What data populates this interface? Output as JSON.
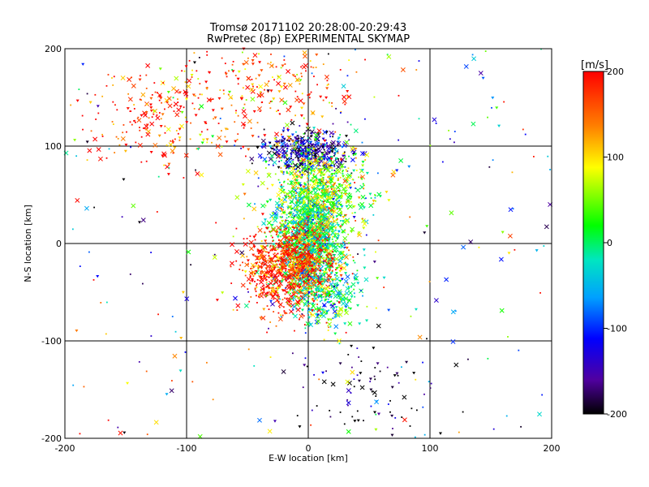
{
  "chart_data": {
    "type": "scatter",
    "title": "Tromsø 20171102 20:28:00-20:29:43",
    "subtitle": "RwPretec (8p) EXPERIMENTAL SKYMAP",
    "xlabel": "E-W location [km]",
    "ylabel": "N-S location [km]",
    "xlim": [
      -200,
      200
    ],
    "ylim": [
      -200,
      200
    ],
    "x_ticks": [
      -200,
      -100,
      0,
      100,
      200
    ],
    "y_ticks": [
      -200,
      -100,
      0,
      100,
      200
    ],
    "grid": true,
    "colorbar": {
      "label": "[m/s]",
      "range": [
        -200,
        200
      ],
      "ticks": [
        200,
        100,
        0,
        -100,
        -200
      ]
    },
    "point_density": [
      {
        "x": 0,
        "y": 5,
        "spread_x": 14,
        "spread_y": 30,
        "value": 0
      },
      {
        "x": 0,
        "y": 95,
        "spread_x": 18,
        "spread_y": 10,
        "value": -140
      },
      {
        "x": -15,
        "y": -25,
        "spread_x": 18,
        "spread_y": 22,
        "value": 185
      },
      {
        "x": 10,
        "y": 55,
        "spread_x": 20,
        "spread_y": 25,
        "value": 60
      },
      {
        "x": 15,
        "y": -55,
        "spread_x": 15,
        "spread_y": 15,
        "value": -10
      },
      {
        "x": -120,
        "y": 125,
        "spread_x": 30,
        "spread_y": 25,
        "value": 190
      },
      {
        "x": -40,
        "y": 160,
        "spread_x": 40,
        "spread_y": 30,
        "value": 160
      },
      {
        "x": 50,
        "y": -150,
        "spread_x": 30,
        "spread_y": 25,
        "value": -200
      }
    ]
  }
}
